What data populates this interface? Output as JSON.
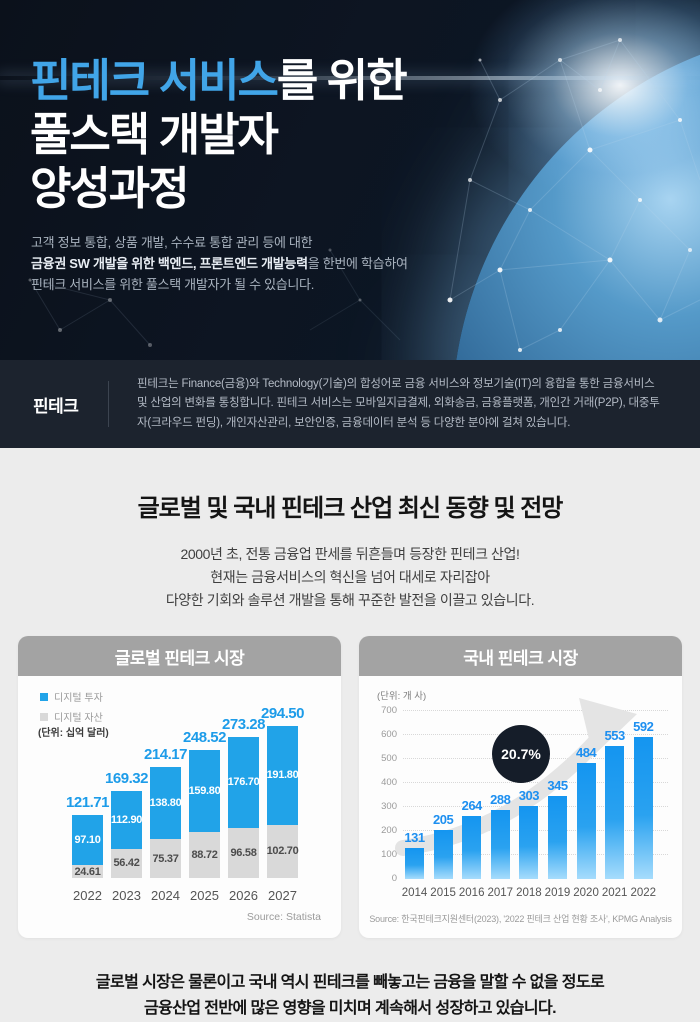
{
  "hero": {
    "title_highlight": "핀테크 서비스",
    "title_rest": "를 위한",
    "title_line2": "풀스택 개발자",
    "title_line3": "양성과정",
    "desc_line1": "고객 정보 통합, 상품 개발, 수수료 통합 관리 등에 대한",
    "desc_line2_bold": "금융권 SW 개발을 위한 백엔드, 프론트엔드 개발능력",
    "desc_line2_rest": "을 한번에 학습하여",
    "desc_line3": "핀테크 서비스를 위한 풀스택 개발자가 될 수 있습니다."
  },
  "definition": {
    "label": "핀테크",
    "text": "핀테크는 Finance(금융)와 Technology(기술)의 합성어로 금융 서비스와 정보기술(IT)의 융합을 통한 금융서비스 및 산업의 변화를 통칭합니다. 핀테크 서비스는 모바일지급결제, 외화송금, 금융플랫폼, 개인간 거래(P2P), 대중투자(크라우드 펀딩), 개인자산관리, 보안인증, 금융데이터 분석 등 다양한 분야에 걸쳐 있습니다."
  },
  "trends": {
    "heading": "글로벌 및 국내 핀테크 산업 최신 동향 및 전망",
    "subtitle_lines": [
      "2000년 초, 전통 금융업 판세를 뒤흔들며 등장한 핀테크 산업!",
      "현재는 금융서비스의 혁신을 넘어 대세로 자리잡아",
      "다양한 기회와 솔루션 개발을 통해 꾸준한 발전을 이끌고 있습니다."
    ],
    "footer_line1": "글로벌 시장은 물론이고 국내 역시 핀테크를 빼놓고는 금융을 말할 수 없을 정도로",
    "footer_line2": "금융산업 전반에 많은 영향을 미치며 계속해서 성장하고 있습니다."
  },
  "chart_data": [
    {
      "type": "bar",
      "stacked": true,
      "title": "글로벌 핀테크 시장",
      "unit_label": "(단위: 십억 달러)",
      "categories": [
        "2022",
        "2023",
        "2024",
        "2025",
        "2026",
        "2027"
      ],
      "series": [
        {
          "name": "디지털 투자",
          "color": "#21a3e8",
          "values": [
            97.1,
            112.9,
            138.8,
            159.8,
            176.7,
            191.8
          ]
        },
        {
          "name": "디지털 자산",
          "color": "#d9d9d9",
          "values": [
            24.61,
            56.42,
            75.37,
            88.72,
            96.58,
            102.7
          ]
        }
      ],
      "totals": [
        121.71,
        169.32,
        214.17,
        248.52,
        273.28,
        294.5
      ],
      "ylim": [
        0,
        300
      ],
      "grid": false,
      "legend_position": "top-left",
      "source": "Source: Statista"
    },
    {
      "type": "bar",
      "stacked": false,
      "title": "국내 핀테크 시장",
      "unit_label": "(단위: 개 사)",
      "categories": [
        "2014",
        "2015",
        "2016",
        "2017",
        "2018",
        "2019",
        "2020",
        "2021",
        "2022"
      ],
      "values": [
        131,
        205,
        264,
        288,
        303,
        345,
        484,
        553,
        592
      ],
      "bar_color": "#1b9df0",
      "ylim": [
        0,
        700
      ],
      "yticks": [
        0,
        100,
        200,
        300,
        400,
        500,
        600,
        700
      ],
      "grid": true,
      "badge": "20.7%",
      "source": "Source: 한국핀테크지원센터(2023), '2022 핀테크 산업 현황 조사', KPMG Analysis"
    }
  ]
}
